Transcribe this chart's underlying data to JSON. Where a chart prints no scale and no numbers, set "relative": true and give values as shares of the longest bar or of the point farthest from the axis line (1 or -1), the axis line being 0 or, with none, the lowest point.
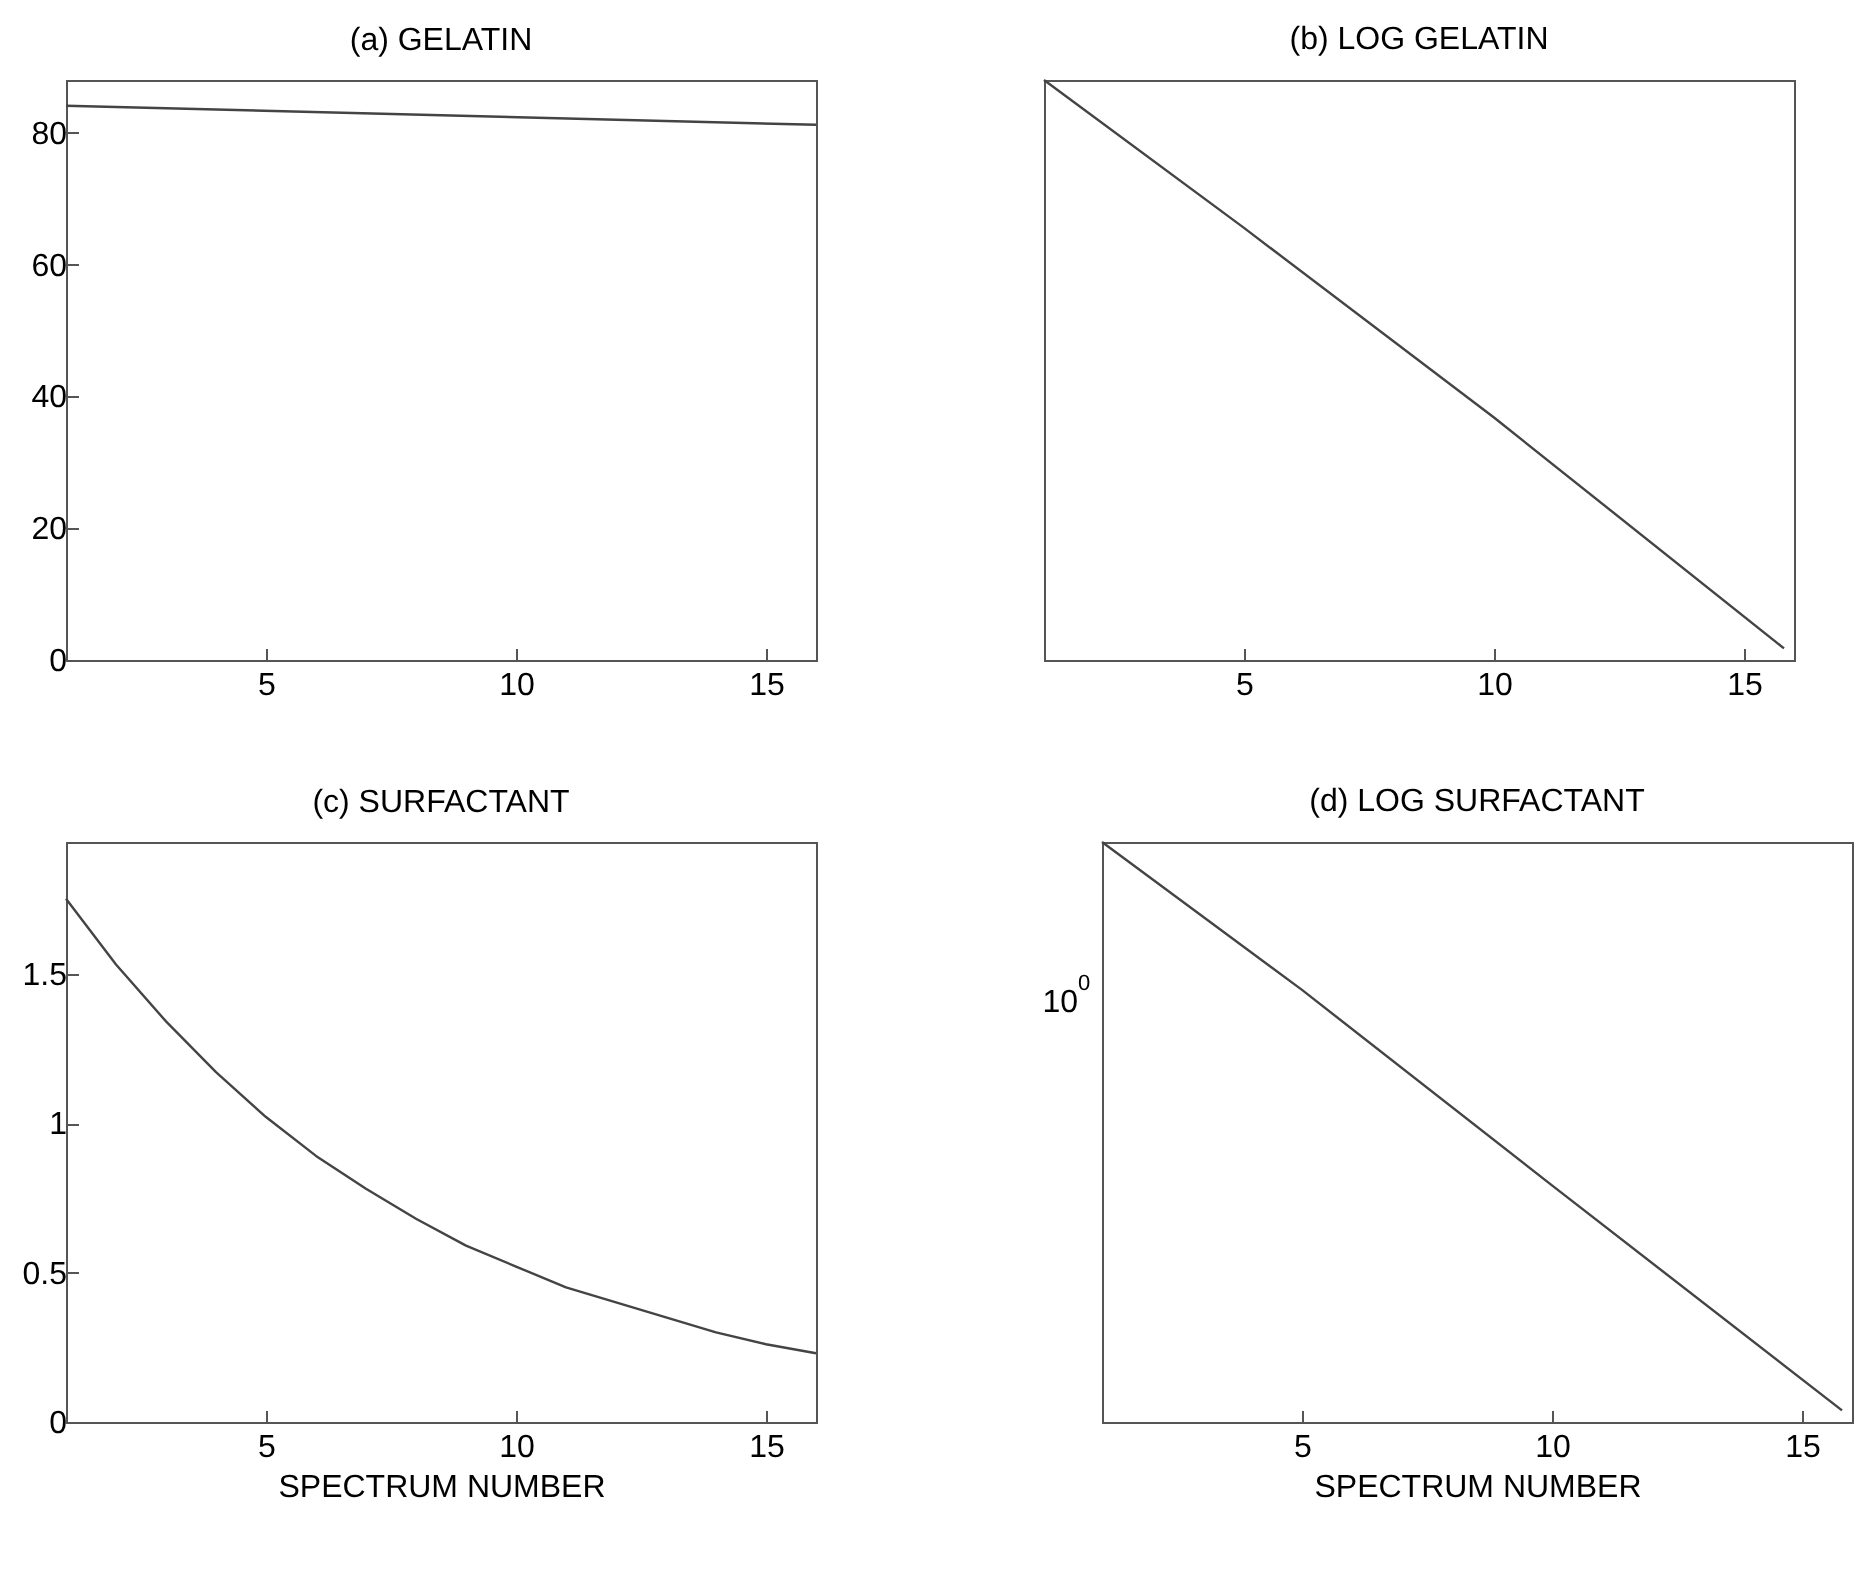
{
  "chart_data": [
    {
      "type": "line",
      "title": "(a) GELATIN",
      "x": [
        1,
        16
      ],
      "xlim": [
        1,
        16
      ],
      "xticks": [
        5,
        10,
        15
      ],
      "ylim": [
        0,
        88
      ],
      "yticks": [
        0,
        20,
        40,
        60,
        80
      ],
      "series": [
        {
          "color": "#444444",
          "values": [
            84.1,
            81.2
          ]
        }
      ]
    },
    {
      "type": "line",
      "title": "(b) LOG GELATIN",
      "relative": true,
      "x": [
        1,
        5,
        10,
        15.8
      ],
      "xlim": [
        1,
        16
      ],
      "xticks": [
        5,
        10,
        15
      ],
      "tick_labels": "x",
      "series": [
        {
          "color": "#444444",
          "values": [
            1,
            0.745,
            0.418,
            0.02
          ]
        }
      ]
    },
    {
      "type": "line",
      "title": "(c) SURFACTANT",
      "xlabel": "SPECTRUM NUMBER",
      "x": [
        1,
        2,
        3,
        4,
        5,
        6,
        7,
        8,
        9,
        10,
        11,
        12,
        13,
        14,
        15,
        16
      ],
      "xlim": [
        1,
        16
      ],
      "xticks": [
        5,
        10,
        15
      ],
      "ylim": [
        0,
        1.94
      ],
      "yticks": [
        {
          "value": 0,
          "label": "0"
        },
        0.5,
        {
          "value": 1,
          "label": "1"
        },
        1.5
      ],
      "series": [
        {
          "color": "#444444",
          "values": [
            1.75,
            1.53,
            1.34,
            1.17,
            1.02,
            0.89,
            0.78,
            0.68,
            0.59,
            0.52,
            0.45,
            0.4,
            0.35,
            0.3,
            0.26,
            0.23
          ]
        }
      ]
    },
    {
      "type": "line",
      "title": "(d) LOG SURFACTANT",
      "xlabel": "SPECTRUM NUMBER",
      "relative": true,
      "x": [
        1,
        5,
        10,
        15.8
      ],
      "xlim": [
        1,
        16
      ],
      "xticks": [
        5,
        10,
        15
      ],
      "tick_labels": "x",
      "annotations": [
        "10$^{0}$"
      ],
      "series": [
        {
          "color": "#444444",
          "values": [
            1,
            0.745,
            0.408,
            0.02
          ]
        }
      ]
    }
  ]
}
